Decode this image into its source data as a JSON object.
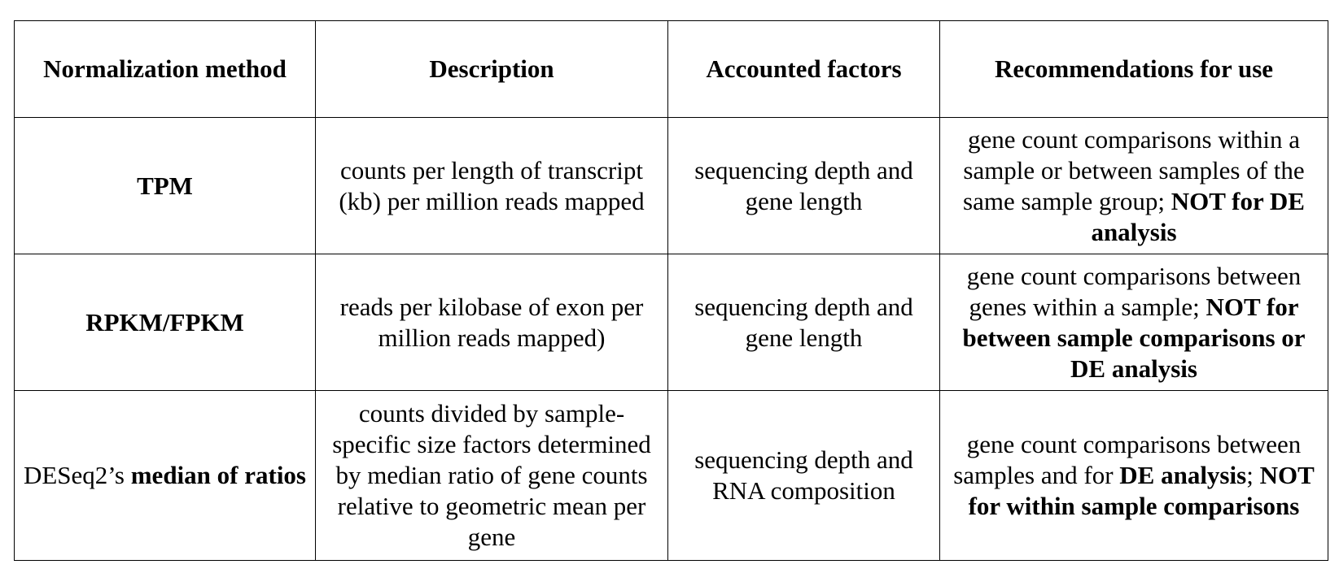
{
  "table": {
    "headers": [
      "Normalization method",
      "Description",
      "Accounted factors",
      "Recommendations for use"
    ],
    "rows": [
      {
        "method": "TPM",
        "description": "counts per length of transcript (kb) per million reads mapped",
        "factors": "sequencing depth and gene length",
        "recommendation_plain": "gene count comparisons within a sample or between samples of the same sample group; ",
        "recommendation_bold": "NOT for DE analysis"
      },
      {
        "method": "RPKM/FPKM",
        "description": "reads per kilobase of exon per million reads mapped)",
        "factors": "sequencing depth and gene length",
        "recommendation_plain": "gene count comparisons between genes within a sample; ",
        "recommendation_bold": "NOT for between sample comparisons or DE analysis"
      },
      {
        "method_plain": "DESeq2’s ",
        "method_bold": "median of ratios",
        "description": "counts divided by sample-specific size factors determined by median ratio of gene counts relative to geometric mean per gene",
        "factors": "sequencing depth and RNA composition",
        "recommendation_plain_1": "gene count comparisons between samples and for ",
        "recommendation_bold_1": "DE analysis",
        "recommendation_plain_2": "; ",
        "recommendation_bold_2": "NOT for within sample comparisons"
      }
    ]
  }
}
